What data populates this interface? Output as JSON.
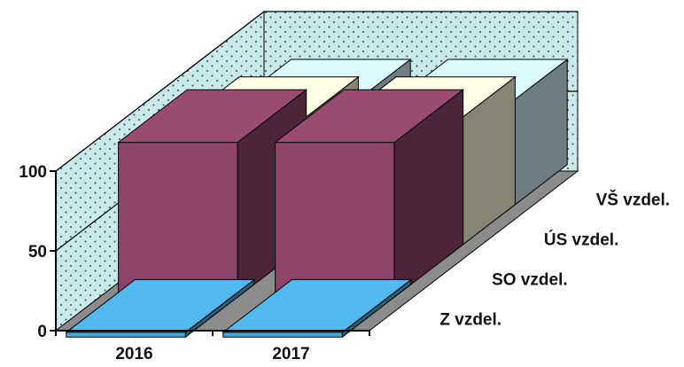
{
  "chart_data": {
    "type": "bar",
    "subtype": "3d-clustered-depth",
    "title": "",
    "xlabel": "",
    "ylabel": "",
    "categories": [
      "2016",
      "2017"
    ],
    "ylim": [
      0,
      100
    ],
    "yticks": [
      0,
      50,
      100
    ],
    "grid": true,
    "series": [
      {
        "name": "Z vzdel.",
        "values": [
          3,
          3
        ],
        "color": "#4aa8d8"
      },
      {
        "name": "SO vzdel.",
        "values": [
          97,
          97
        ],
        "color": "#8c4468"
      },
      {
        "name": "ÚS vzdel.",
        "values": [
          80,
          80
        ],
        "color": "#f4f0d0"
      },
      {
        "name": "VŠ vzdel.",
        "values": [
          66,
          66
        ],
        "color": "#c8e4ea"
      }
    ],
    "colors": {
      "wall": "#c9e9ea",
      "floor": "#8c8c8c",
      "axis": "#000000"
    }
  }
}
